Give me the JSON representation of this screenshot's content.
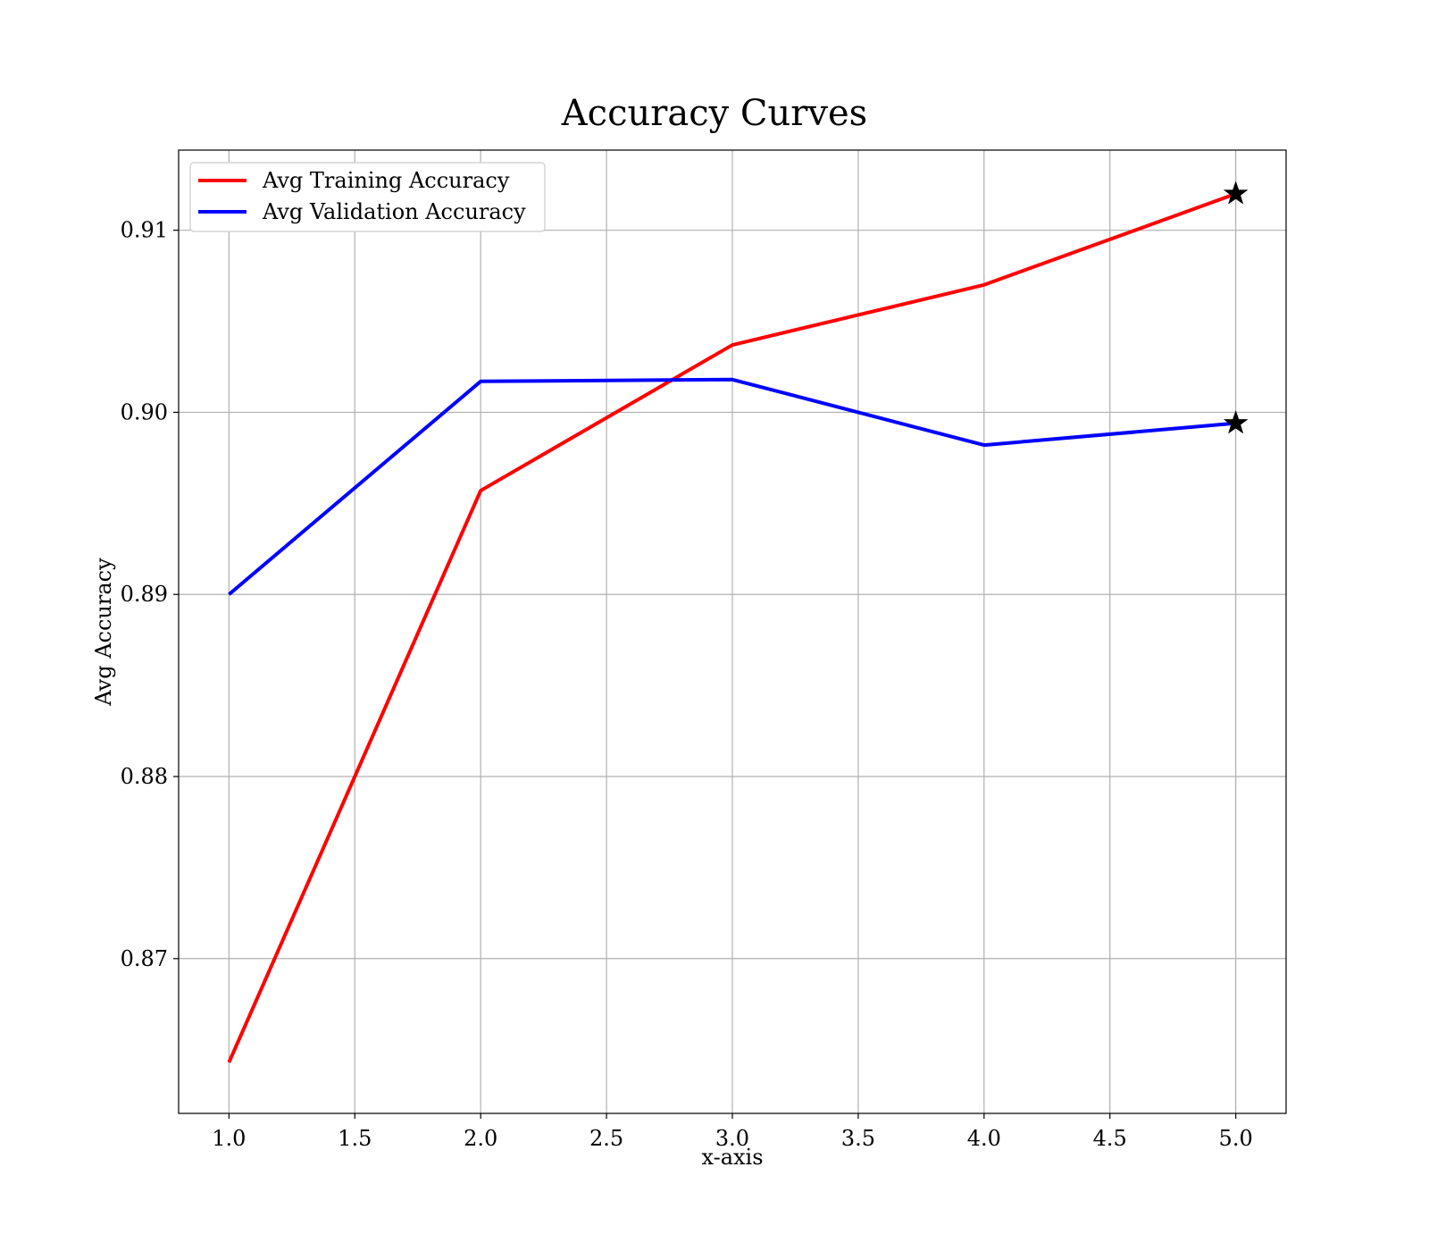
{
  "chart_data": {
    "type": "line",
    "title": "Accuracy Curves",
    "xlabel": "x-axis",
    "ylabel": "Avg Accuracy",
    "x": [
      1.0,
      2.0,
      3.0,
      4.0,
      5.0
    ],
    "xlim": [
      0.8,
      5.2
    ],
    "ylim": [
      0.8615,
      0.9144
    ],
    "xticks": [
      1.0,
      1.5,
      2.0,
      2.5,
      3.0,
      3.5,
      4.0,
      4.5,
      5.0
    ],
    "xtick_labels": [
      "1.0",
      "1.5",
      "2.0",
      "2.5",
      "3.0",
      "3.5",
      "4.0",
      "4.5",
      "5.0"
    ],
    "yticks": [
      0.87,
      0.88,
      0.89,
      0.9,
      0.91
    ],
    "ytick_labels": [
      "0.87",
      "0.88",
      "0.89",
      "0.90",
      "0.91"
    ],
    "grid": true,
    "legend_position": "upper-left",
    "series": [
      {
        "name": "Avg Training Accuracy",
        "color": "#ff0000",
        "values": [
          0.8643,
          0.8957,
          0.9037,
          0.907,
          0.912
        ],
        "marker_last": "star"
      },
      {
        "name": "Avg Validation Accuracy",
        "color": "#0000ff",
        "values": [
          0.89,
          0.9017,
          0.9018,
          0.8982,
          0.8994
        ],
        "marker_last": "star"
      }
    ]
  }
}
